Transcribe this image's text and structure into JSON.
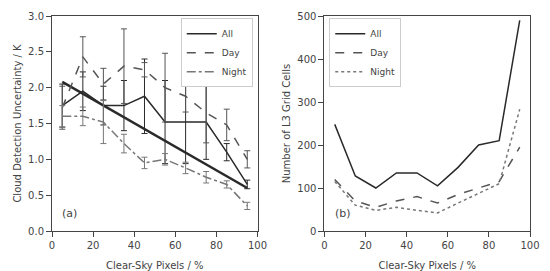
{
  "chart_data": [
    {
      "type": "line",
      "x": [
        5,
        15,
        25,
        35,
        45,
        55,
        65,
        75,
        85,
        95
      ],
      "xlabel": "Clear-Sky Pixels / %",
      "ylabel": "Cloud Detection Uncertainty / K",
      "xlim": [
        0,
        100
      ],
      "ylim": [
        0.0,
        3.0
      ],
      "xticks": [
        0,
        20,
        40,
        60,
        80,
        100
      ],
      "yticks": [
        {
          "value": 0.0,
          "label": "0.0"
        },
        0.5,
        {
          "value": 1.0,
          "label": "1.0"
        },
        1.5,
        {
          "value": 2.0,
          "label": "2.0"
        },
        2.5,
        {
          "value": 3.0,
          "label": "3.0"
        }
      ],
      "grid": false,
      "legend": "upper right",
      "annotation": "(a)",
      "series": [
        {
          "name": "All",
          "color": "#2a2a2a",
          "line_style": "solid",
          "values": [
            1.75,
            1.95,
            1.75,
            1.75,
            1.88,
            1.52,
            1.52,
            1.52,
            1.1,
            0.65
          ],
          "errors": [
            0.3,
            0.27,
            0.27,
            0.35,
            0.52,
            0.58,
            0.58,
            0.52,
            0.12,
            0.06
          ],
          "fit_x": [
            5,
            95
          ],
          "fit_y": [
            2.08,
            0.6
          ]
        },
        {
          "name": "Day",
          "color": "#555555",
          "line_style": "dashed",
          "values": [
            1.72,
            2.43,
            2.05,
            2.3,
            2.25,
            2.0,
            1.88,
            1.65,
            1.48,
            1.0
          ],
          "errors": [
            0.3,
            0.28,
            0.22,
            0.52,
            0.1,
            0.48,
            0.22,
            0.42,
            0.22,
            0.12
          ]
        },
        {
          "name": "Night",
          "color": "#777777",
          "line_style": "dashdot",
          "values": [
            1.6,
            1.6,
            1.52,
            1.22,
            0.95,
            1.0,
            0.88,
            0.75,
            0.65,
            0.35
          ],
          "errors": [
            0.15,
            0.13,
            0.3,
            0.13,
            0.08,
            0.08,
            0.08,
            0.08,
            0.05,
            0.05
          ]
        }
      ]
    },
    {
      "type": "line",
      "x": [
        5,
        15,
        25,
        35,
        45,
        55,
        65,
        75,
        85,
        95
      ],
      "xlabel": "Clear-Sky Pixels / %",
      "ylabel": "Number of L3 Grid Cells",
      "xlim": [
        0,
        100
      ],
      "ylim": [
        0,
        500
      ],
      "xticks": [
        0,
        20,
        40,
        60,
        80,
        100
      ],
      "yticks": [
        0,
        100,
        200,
        300,
        400,
        500
      ],
      "grid": false,
      "legend": "upper left",
      "annotation": "(b)",
      "series": [
        {
          "name": "All",
          "color": "#2a2a2a",
          "line_style": "solid",
          "values": [
            248,
            128,
            100,
            135,
            135,
            105,
            148,
            200,
            210,
            490
          ]
        },
        {
          "name": "Day",
          "color": "#555555",
          "line_style": "dashed",
          "values": [
            120,
            70,
            55,
            70,
            80,
            65,
            85,
            100,
            115,
            195
          ]
        },
        {
          "name": "Night",
          "color": "#777777",
          "line_style": "dotted",
          "values": [
            115,
            60,
            48,
            55,
            48,
            42,
            65,
            88,
            110,
            283
          ]
        }
      ]
    }
  ]
}
